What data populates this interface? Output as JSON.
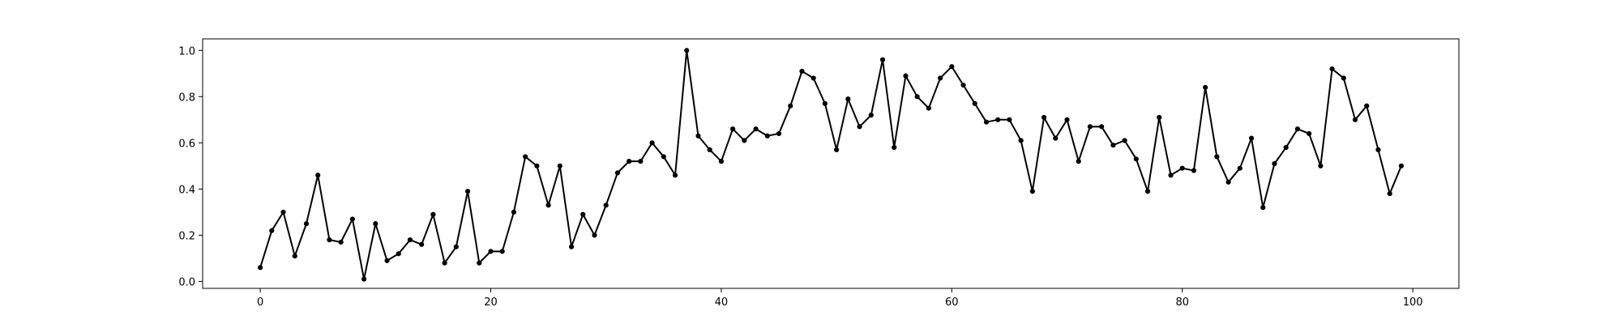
{
  "chart_data": {
    "type": "line",
    "title": "",
    "xlabel": "",
    "ylabel": "",
    "xlim": [
      -5,
      104
    ],
    "ylim": [
      -0.03,
      1.05
    ],
    "grid": false,
    "legend": "none",
    "x_ticks": [
      0,
      20,
      40,
      60,
      80,
      100
    ],
    "x_tick_labels": [
      "0",
      "20",
      "40",
      "60",
      "80",
      "100"
    ],
    "y_ticks": [
      0.0,
      0.2,
      0.4,
      0.6,
      0.8,
      1.0
    ],
    "y_tick_labels": [
      "0.0",
      "0.2",
      "0.4",
      "0.6",
      "0.8",
      "1.0"
    ],
    "series": [
      {
        "color": "#000000",
        "marker": "circle",
        "x": [
          0,
          1,
          2,
          3,
          4,
          5,
          6,
          7,
          8,
          9,
          10,
          11,
          12,
          13,
          14,
          15,
          16,
          17,
          18,
          19,
          20,
          21,
          22,
          23,
          24,
          25,
          26,
          27,
          28,
          29,
          30,
          31,
          32,
          33,
          34,
          35,
          36,
          37,
          38,
          39,
          40,
          41,
          42,
          43,
          44,
          45,
          46,
          47,
          48,
          49,
          50,
          51,
          52,
          53,
          54,
          55,
          56,
          57,
          58,
          59,
          60,
          61,
          62,
          63,
          64,
          65,
          66,
          67,
          68,
          69,
          70,
          71,
          72,
          73,
          74,
          75,
          76,
          77,
          78,
          79,
          80,
          81,
          82,
          83,
          84,
          85,
          86,
          87,
          88,
          89,
          90,
          91,
          92,
          93,
          94,
          95,
          96,
          97,
          98,
          99
        ],
        "y": [
          0.06,
          0.22,
          0.3,
          0.11,
          0.25,
          0.46,
          0.18,
          0.17,
          0.27,
          0.01,
          0.25,
          0.09,
          0.12,
          0.18,
          0.16,
          0.29,
          0.08,
          0.15,
          0.39,
          0.08,
          0.13,
          0.13,
          0.3,
          0.54,
          0.5,
          0.33,
          0.5,
          0.15,
          0.29,
          0.2,
          0.33,
          0.47,
          0.52,
          0.52,
          0.6,
          0.54,
          0.46,
          1.0,
          0.63,
          0.57,
          0.52,
          0.66,
          0.61,
          0.66,
          0.63,
          0.64,
          0.76,
          0.91,
          0.88,
          0.77,
          0.57,
          0.79,
          0.67,
          0.72,
          0.96,
          0.58,
          0.89,
          0.8,
          0.75,
          0.88,
          0.93,
          0.85,
          0.77,
          0.69,
          0.7,
          0.7,
          0.61,
          0.39,
          0.71,
          0.62,
          0.7,
          0.52,
          0.67,
          0.67,
          0.59,
          0.61,
          0.53,
          0.39,
          0.71,
          0.46,
          0.49,
          0.48,
          0.84,
          0.54,
          0.43,
          0.49,
          0.62,
          0.32,
          0.51,
          0.58,
          0.66,
          0.64,
          0.5,
          0.92,
          0.88,
          0.7,
          0.76,
          0.57,
          0.38,
          0.5
        ]
      }
    ]
  }
}
